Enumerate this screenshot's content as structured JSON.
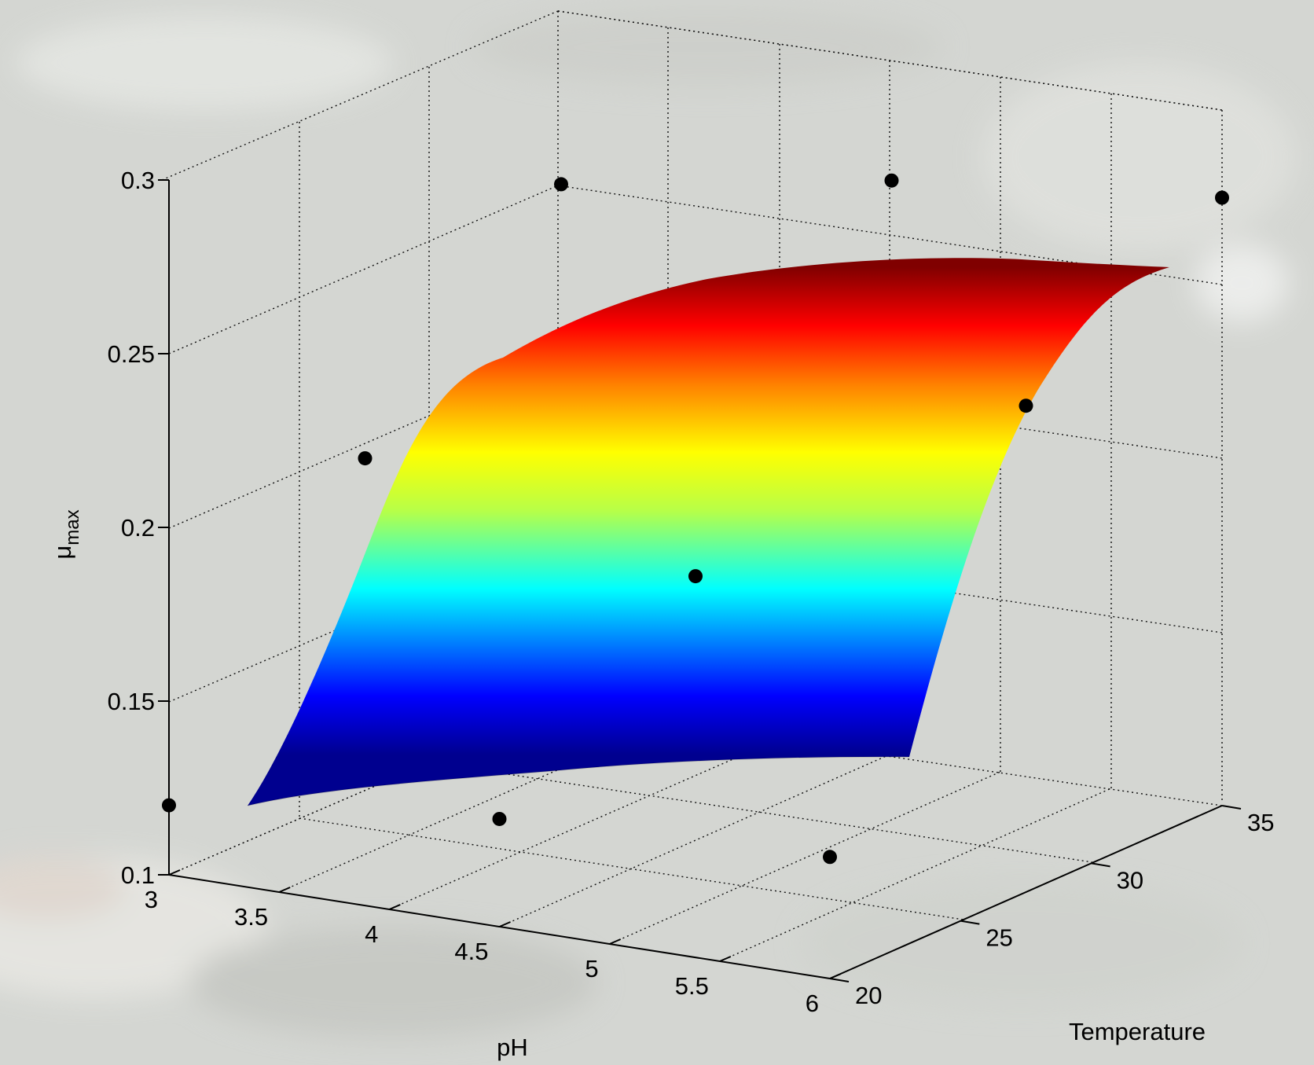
{
  "chart_data": {
    "type": "surface",
    "xlabel": "pH",
    "ylabel": "Temperature",
    "zlabel_base": "μ",
    "zlabel_sub": "max",
    "x_ticks": [
      "3",
      "3.5",
      "4",
      "4.5",
      "5",
      "5.5",
      "6"
    ],
    "y_ticks": [
      "20",
      "25",
      "30",
      "35"
    ],
    "z_ticks": [
      "0.1",
      "0.15",
      "0.2",
      "0.25",
      "0.3"
    ],
    "xlim": [
      3,
      6
    ],
    "ylim": [
      20,
      35
    ],
    "zlim": [
      0.1,
      0.3
    ],
    "grid": true,
    "colormap": "jet",
    "surface_corners": [
      {
        "x": 3,
        "y": 20,
        "z": 0.12
      },
      {
        "x": 6,
        "y": 20,
        "z": 0.135
      },
      {
        "x": 3,
        "y": 35,
        "z": 0.245
      },
      {
        "x": 6,
        "y": 35,
        "z": 0.28
      }
    ],
    "points": [
      {
        "x": 3.0,
        "y": 20,
        "z": 0.12
      },
      {
        "x": 4.5,
        "y": 20,
        "z": 0.131
      },
      {
        "x": 6.0,
        "y": 20,
        "z": 0.135
      },
      {
        "x": 3.0,
        "y": 27.5,
        "z": 0.195
      },
      {
        "x": 4.5,
        "y": 27.5,
        "z": 0.176
      },
      {
        "x": 6.0,
        "y": 27.5,
        "z": 0.24
      },
      {
        "x": 3.0,
        "y": 35,
        "z": 0.249
      },
      {
        "x": 4.5,
        "y": 35,
        "z": 0.265
      },
      {
        "x": 6.0,
        "y": 35,
        "z": 0.275
      }
    ]
  }
}
